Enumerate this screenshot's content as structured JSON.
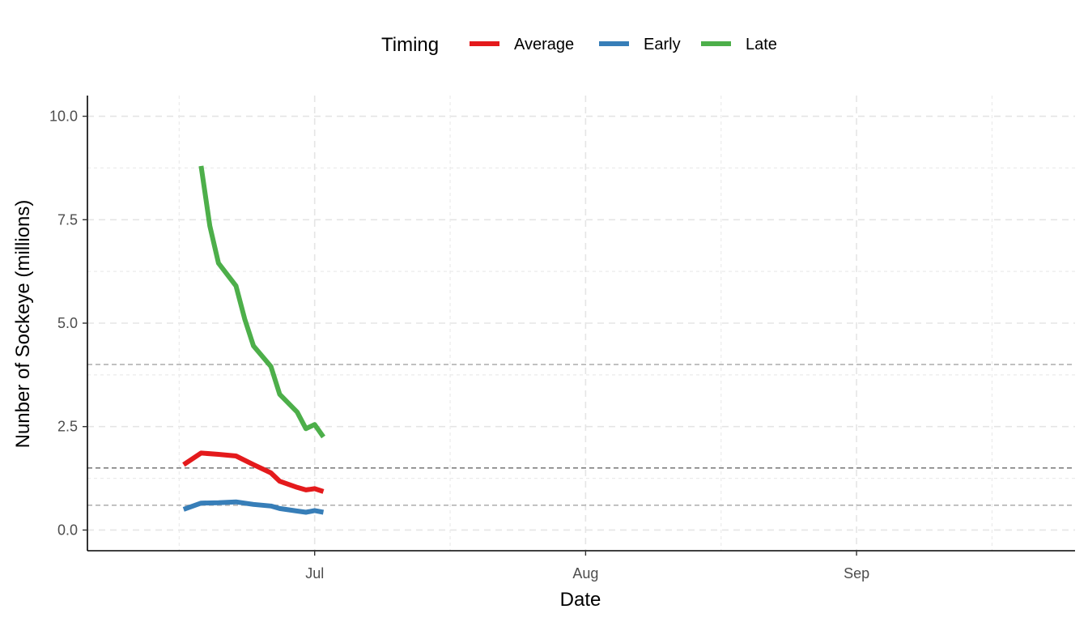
{
  "chart_data": {
    "type": "line",
    "title": "",
    "xlabel": "Date",
    "ylabel": "Nunber of Sockeye (millions)",
    "x_axis": {
      "type": "date",
      "range": [
        "2000-06-05",
        "2000-09-26"
      ],
      "ticks": [
        {
          "date": "2000-07-01",
          "label": "Jul"
        },
        {
          "date": "2000-08-01",
          "label": "Aug"
        },
        {
          "date": "2000-09-01",
          "label": "Sep"
        }
      ]
    },
    "y_axis": {
      "range": [
        -0.5,
        10.5
      ],
      "ticks": [
        0,
        2.5,
        5,
        7.5,
        10
      ],
      "tick_labels": [
        "0.0",
        "2.5",
        "5.0",
        "7.5",
        "10.0"
      ]
    },
    "grid": true,
    "legend": {
      "title": "Timing",
      "position": "top",
      "entries": [
        "Average",
        "Early",
        "Late"
      ]
    },
    "series": [
      {
        "name": "Average",
        "color": "#E41A1C",
        "points": [
          {
            "x": "2000-06-16",
            "y": 1.58
          },
          {
            "x": "2000-06-18",
            "y": 1.86
          },
          {
            "x": "2000-06-20",
            "y": 1.83
          },
          {
            "x": "2000-06-22",
            "y": 1.79
          },
          {
            "x": "2000-06-24",
            "y": 1.58
          },
          {
            "x": "2000-06-26",
            "y": 1.38
          },
          {
            "x": "2000-06-27",
            "y": 1.18
          },
          {
            "x": "2000-06-29",
            "y": 1.03
          },
          {
            "x": "2000-06-30",
            "y": 0.97
          },
          {
            "x": "2000-07-01",
            "y": 1.0
          },
          {
            "x": "2000-07-02",
            "y": 0.93
          }
        ]
      },
      {
        "name": "Early",
        "color": "#377EB8",
        "points": [
          {
            "x": "2000-06-16",
            "y": 0.5
          },
          {
            "x": "2000-06-18",
            "y": 0.65
          },
          {
            "x": "2000-06-20",
            "y": 0.66
          },
          {
            "x": "2000-06-22",
            "y": 0.68
          },
          {
            "x": "2000-06-24",
            "y": 0.62
          },
          {
            "x": "2000-06-26",
            "y": 0.58
          },
          {
            "x": "2000-06-27",
            "y": 0.52
          },
          {
            "x": "2000-06-29",
            "y": 0.46
          },
          {
            "x": "2000-06-30",
            "y": 0.43
          },
          {
            "x": "2000-07-01",
            "y": 0.47
          },
          {
            "x": "2000-07-02",
            "y": 0.43
          }
        ]
      },
      {
        "name": "Late",
        "color": "#4DAF4A",
        "points": [
          {
            "x": "2000-06-18",
            "y": 8.8
          },
          {
            "x": "2000-06-19",
            "y": 7.35
          },
          {
            "x": "2000-06-20",
            "y": 6.45
          },
          {
            "x": "2000-06-22",
            "y": 5.9
          },
          {
            "x": "2000-06-23",
            "y": 5.1
          },
          {
            "x": "2000-06-24",
            "y": 4.45
          },
          {
            "x": "2000-06-26",
            "y": 3.95
          },
          {
            "x": "2000-06-27",
            "y": 3.28
          },
          {
            "x": "2000-06-29",
            "y": 2.85
          },
          {
            "x": "2000-06-30",
            "y": 2.45
          },
          {
            "x": "2000-07-01",
            "y": 2.55
          },
          {
            "x": "2000-07-02",
            "y": 2.25
          }
        ]
      }
    ],
    "reference_lines": [
      {
        "y": 4.0,
        "color": "#b3b3b3",
        "style": "dashed"
      },
      {
        "y": 1.5,
        "color": "#808080",
        "style": "dashed"
      },
      {
        "y": 0.6,
        "color": "#b3b3b3",
        "style": "dashed"
      }
    ]
  }
}
